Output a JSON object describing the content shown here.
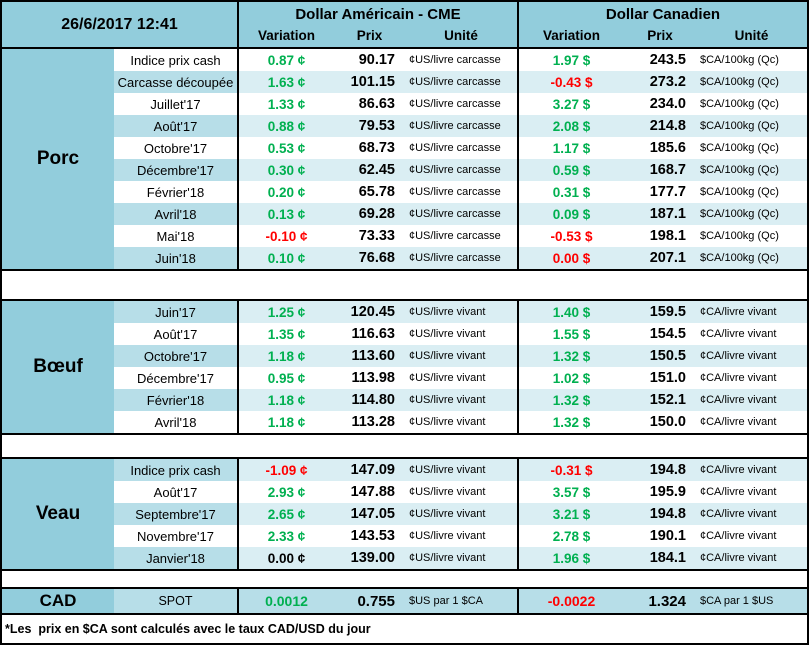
{
  "meta": {
    "timestamp": "26/6/2017 12:41"
  },
  "colors": {
    "positive_green": "#00B050",
    "negative_red": "#FF0000",
    "header_blue": "#92CDDC",
    "row_alt_blue": "#DAEEF3",
    "label_alt_blue": "#B7DEE8"
  },
  "header": {
    "us_title": "Dollar Américain - CME",
    "ca_title": "Dollar Canadien",
    "col_variation": "Variation",
    "col_prix": "Prix",
    "col_unite": "Unité"
  },
  "sections": [
    {
      "name": "Porc",
      "rows": [
        {
          "label": "Indice prix cash",
          "us_var": "0.87 ¢",
          "us_var_color": "green",
          "us_prix": "90.17",
          "us_unit": "¢US/livre carcasse",
          "ca_var": "1.97 $",
          "ca_var_color": "green",
          "ca_prix": "243.5",
          "ca_unit": "$CA/100kg (Qc)"
        },
        {
          "label": "Carcasse découpée",
          "us_var": "1.63 ¢",
          "us_var_color": "green",
          "us_prix": "101.15",
          "us_unit": "¢US/livre carcasse",
          "ca_var": "-0.43 $",
          "ca_var_color": "red",
          "ca_prix": "273.2",
          "ca_unit": "$CA/100kg (Qc)"
        },
        {
          "label": "Juillet'17",
          "us_var": "1.33 ¢",
          "us_var_color": "green",
          "us_prix": "86.63",
          "us_unit": "¢US/livre carcasse",
          "ca_var": "3.27 $",
          "ca_var_color": "green",
          "ca_prix": "234.0",
          "ca_unit": "$CA/100kg (Qc)"
        },
        {
          "label": "Août'17",
          "us_var": "0.88 ¢",
          "us_var_color": "green",
          "us_prix": "79.53",
          "us_unit": "¢US/livre carcasse",
          "ca_var": "2.08 $",
          "ca_var_color": "green",
          "ca_prix": "214.8",
          "ca_unit": "$CA/100kg (Qc)"
        },
        {
          "label": "Octobre'17",
          "us_var": "0.53 ¢",
          "us_var_color": "green",
          "us_prix": "68.73",
          "us_unit": "¢US/livre carcasse",
          "ca_var": "1.17 $",
          "ca_var_color": "green",
          "ca_prix": "185.6",
          "ca_unit": "$CA/100kg (Qc)"
        },
        {
          "label": "Décembre'17",
          "us_var": "0.30 ¢",
          "us_var_color": "green",
          "us_prix": "62.45",
          "us_unit": "¢US/livre carcasse",
          "ca_var": "0.59 $",
          "ca_var_color": "green",
          "ca_prix": "168.7",
          "ca_unit": "$CA/100kg (Qc)"
        },
        {
          "label": "Février'18",
          "us_var": "0.20 ¢",
          "us_var_color": "green",
          "us_prix": "65.78",
          "us_unit": "¢US/livre carcasse",
          "ca_var": "0.31 $",
          "ca_var_color": "green",
          "ca_prix": "177.7",
          "ca_unit": "$CA/100kg (Qc)"
        },
        {
          "label": "Avril'18",
          "us_var": "0.13 ¢",
          "us_var_color": "green",
          "us_prix": "69.28",
          "us_unit": "¢US/livre carcasse",
          "ca_var": "0.09 $",
          "ca_var_color": "green",
          "ca_prix": "187.1",
          "ca_unit": "$CA/100kg (Qc)"
        },
        {
          "label": "Mai'18",
          "us_var": "-0.10 ¢",
          "us_var_color": "red",
          "us_prix": "73.33",
          "us_unit": "¢US/livre carcasse",
          "ca_var": "-0.53 $",
          "ca_var_color": "red",
          "ca_prix": "198.1",
          "ca_unit": "$CA/100kg (Qc)"
        },
        {
          "label": "Juin'18",
          "us_var": "0.10 ¢",
          "us_var_color": "green",
          "us_prix": "76.68",
          "us_unit": "¢US/livre carcasse",
          "ca_var": "0.00 $",
          "ca_var_color": "red",
          "ca_prix": "207.1",
          "ca_unit": "$CA/100kg (Qc)"
        }
      ]
    },
    {
      "name": "Bœuf",
      "rows": [
        {
          "label": "Juin'17",
          "us_var": "1.25 ¢",
          "us_var_color": "green",
          "us_prix": "120.45",
          "us_unit": "¢US/livre vivant",
          "ca_var": "1.40 $",
          "ca_var_color": "green",
          "ca_prix": "159.5",
          "ca_unit": "¢CA/livre vivant"
        },
        {
          "label": "Août'17",
          "us_var": "1.35 ¢",
          "us_var_color": "green",
          "us_prix": "116.63",
          "us_unit": "¢US/livre vivant",
          "ca_var": "1.55 $",
          "ca_var_color": "green",
          "ca_prix": "154.5",
          "ca_unit": "¢CA/livre vivant"
        },
        {
          "label": "Octobre'17",
          "us_var": "1.18 ¢",
          "us_var_color": "green",
          "us_prix": "113.60",
          "us_unit": "¢US/livre vivant",
          "ca_var": "1.32 $",
          "ca_var_color": "green",
          "ca_prix": "150.5",
          "ca_unit": "¢CA/livre vivant"
        },
        {
          "label": "Décembre'17",
          "us_var": "0.95 ¢",
          "us_var_color": "green",
          "us_prix": "113.98",
          "us_unit": "¢US/livre vivant",
          "ca_var": "1.02 $",
          "ca_var_color": "green",
          "ca_prix": "151.0",
          "ca_unit": "¢CA/livre vivant"
        },
        {
          "label": "Février'18",
          "us_var": "1.18 ¢",
          "us_var_color": "green",
          "us_prix": "114.80",
          "us_unit": "¢US/livre vivant",
          "ca_var": "1.32 $",
          "ca_var_color": "green",
          "ca_prix": "152.1",
          "ca_unit": "¢CA/livre vivant"
        },
        {
          "label": "Avril'18",
          "us_var": "1.18 ¢",
          "us_var_color": "green",
          "us_prix": "113.28",
          "us_unit": "¢US/livre vivant",
          "ca_var": "1.32 $",
          "ca_var_color": "green",
          "ca_prix": "150.0",
          "ca_unit": "¢CA/livre vivant"
        }
      ]
    },
    {
      "name": "Veau",
      "rows": [
        {
          "label": "Indice prix cash",
          "us_var": "-1.09 ¢",
          "us_var_color": "red",
          "us_prix": "147.09",
          "us_unit": "¢US/livre vivant",
          "ca_var": "-0.31 $",
          "ca_var_color": "red",
          "ca_prix": "194.8",
          "ca_unit": "¢CA/livre vivant"
        },
        {
          "label": "Août'17",
          "us_var": "2.93 ¢",
          "us_var_color": "green",
          "us_prix": "147.88",
          "us_unit": "¢US/livre vivant",
          "ca_var": "3.57 $",
          "ca_var_color": "green",
          "ca_prix": "195.9",
          "ca_unit": "¢CA/livre vivant"
        },
        {
          "label": "Septembre'17",
          "us_var": "2.65 ¢",
          "us_var_color": "green",
          "us_prix": "147.05",
          "us_unit": "¢US/livre vivant",
          "ca_var": "3.21 $",
          "ca_var_color": "green",
          "ca_prix": "194.8",
          "ca_unit": "¢CA/livre vivant"
        },
        {
          "label": "Novembre'17",
          "us_var": "2.33 ¢",
          "us_var_color": "green",
          "us_prix": "143.53",
          "us_unit": "¢US/livre vivant",
          "ca_var": "2.78 $",
          "ca_var_color": "green",
          "ca_prix": "190.1",
          "ca_unit": "¢CA/livre vivant"
        },
        {
          "label": "Janvier'18",
          "us_var": "0.00 ¢",
          "us_var_color": "black",
          "us_prix": "139.00",
          "us_unit": "¢US/livre vivant",
          "ca_var": "1.96 $",
          "ca_var_color": "green",
          "ca_prix": "184.1",
          "ca_unit": "¢CA/livre vivant"
        }
      ]
    },
    {
      "name": "CAD",
      "rows": [
        {
          "label": "SPOT",
          "us_var": "0.0012",
          "us_var_color": "green",
          "us_prix": "0.755",
          "us_unit": "$US par 1 $CA",
          "ca_var": "-0.0022",
          "ca_var_color": "red",
          "ca_prix": "1.324",
          "ca_unit": "$CA par 1 $US"
        }
      ]
    }
  ],
  "footer": {
    "note": "*Les  prix en $CA sont calculés avec le taux CAD/USD du jour"
  }
}
